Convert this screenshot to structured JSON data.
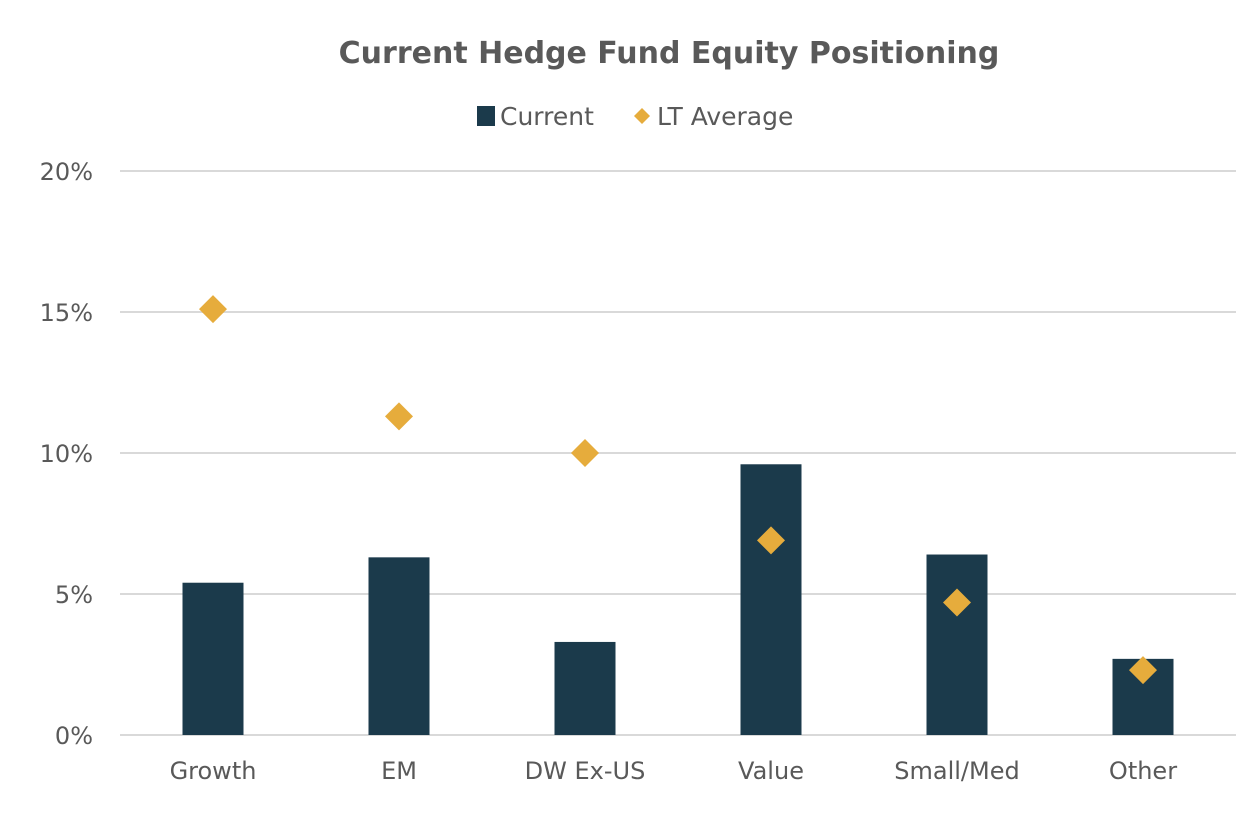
{
  "chart_data": {
    "type": "bar",
    "title": "Current Hedge Fund Equity Positioning",
    "categories": [
      "Growth",
      "EM",
      "DW Ex-US",
      "Value",
      "Small/Med",
      "Other"
    ],
    "series": [
      {
        "name": "Current",
        "kind": "bar",
        "color": "#1b3a4b",
        "values": [
          5.4,
          6.3,
          3.3,
          9.6,
          6.4,
          2.7
        ]
      },
      {
        "name": "LT Average",
        "kind": "marker-diamond",
        "color": "#e6ac3c",
        "values": [
          15.1,
          11.3,
          10.0,
          6.9,
          4.7,
          2.3
        ]
      }
    ],
    "y_axis": {
      "min": 0,
      "max": 20,
      "step": 5,
      "tick_labels": [
        "0%",
        "5%",
        "10%",
        "15%",
        "20%"
      ]
    },
    "xlabel": "",
    "ylabel": "",
    "grid": true,
    "legend_position": "top-center"
  }
}
